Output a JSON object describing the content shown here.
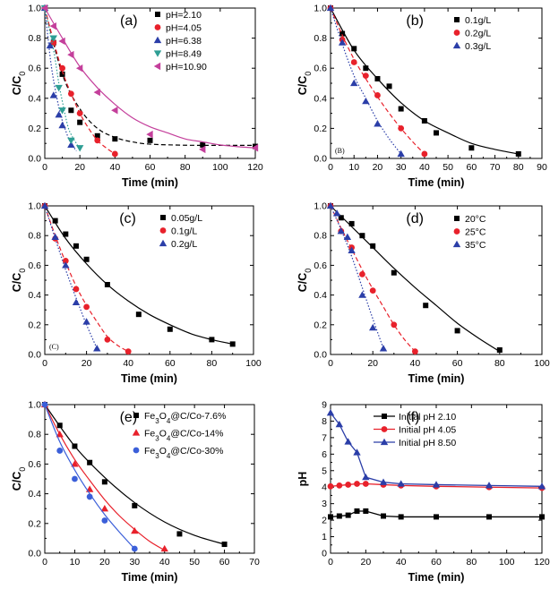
{
  "chart_data": [
    {
      "type": "scatter",
      "panel": "(a)",
      "inset": "",
      "xlabel": "Time (min)",
      "ylabel": "C/C",
      "ylabel_sub": "0",
      "xlim": [
        0,
        120
      ],
      "ylim": [
        0,
        1.0
      ],
      "xticks": [
        0,
        20,
        40,
        60,
        80,
        100,
        120
      ],
      "yticks": [
        0.0,
        0.2,
        0.4,
        0.6,
        0.8,
        1.0
      ],
      "legend_position": "top-right",
      "series": [
        {
          "name": "pH=2.10",
          "marker": "square",
          "color": "#000000",
          "line": "dashed",
          "x": [
            0,
            5,
            10,
            15,
            20,
            30,
            40,
            60,
            90,
            120
          ],
          "y": [
            1.0,
            0.77,
            0.56,
            0.32,
            0.24,
            0.15,
            0.13,
            0.12,
            0.09,
            0.08
          ],
          "fit_x": [
            0,
            10,
            20,
            30,
            40,
            50,
            60,
            80,
            100,
            120
          ],
          "fit_y": [
            1.0,
            0.56,
            0.33,
            0.2,
            0.14,
            0.11,
            0.095,
            0.088,
            0.087,
            0.087
          ]
        },
        {
          "name": "pH=4.05",
          "marker": "circle",
          "color": "#e8212b",
          "line": "dashed",
          "x": [
            0,
            5,
            10,
            15,
            20,
            30,
            40
          ],
          "y": [
            1.0,
            0.77,
            0.6,
            0.43,
            0.3,
            0.12,
            0.03
          ],
          "fit_x": [
            0,
            5,
            10,
            15,
            20,
            25,
            30,
            35,
            40
          ],
          "fit_y": [
            1.0,
            0.78,
            0.58,
            0.43,
            0.3,
            0.2,
            0.12,
            0.07,
            0.03
          ]
        },
        {
          "name": "pH=6.38",
          "marker": "triangle-up",
          "color": "#2b3ea8",
          "line": "dotted",
          "x": [
            0,
            3,
            5,
            8,
            10,
            15
          ],
          "y": [
            1.0,
            0.75,
            0.42,
            0.29,
            0.22,
            0.09
          ],
          "fit_x": [
            0,
            3,
            5,
            8,
            10,
            13,
            15,
            18
          ],
          "fit_y": [
            1.0,
            0.68,
            0.52,
            0.34,
            0.25,
            0.15,
            0.1,
            0.05
          ]
        },
        {
          "name": "pH=8.49",
          "marker": "triangle-down",
          "color": "#2e9e94",
          "line": "dotted",
          "x": [
            0,
            5,
            8,
            10,
            15,
            20
          ],
          "y": [
            1.0,
            0.8,
            0.47,
            0.32,
            0.12,
            0.07
          ],
          "fit_x": [
            0,
            5,
            8,
            10,
            13,
            15,
            18,
            20
          ],
          "fit_y": [
            1.0,
            0.72,
            0.5,
            0.38,
            0.22,
            0.16,
            0.1,
            0.06
          ]
        },
        {
          "name": "pH=10.90",
          "marker": "triangle-left",
          "color": "#c43f9b",
          "line": "solid",
          "x": [
            0,
            5,
            10,
            15,
            20,
            30,
            40,
            60,
            90,
            120
          ],
          "y": [
            1.0,
            0.88,
            0.78,
            0.69,
            0.6,
            0.44,
            0.32,
            0.16,
            0.06,
            0.07
          ],
          "fit_x": [
            0,
            10,
            20,
            30,
            40,
            50,
            60,
            70,
            80,
            90,
            100,
            110,
            120
          ],
          "fit_y": [
            1.0,
            0.8,
            0.61,
            0.47,
            0.36,
            0.27,
            0.21,
            0.17,
            0.13,
            0.11,
            0.09,
            0.078,
            0.07
          ]
        }
      ]
    },
    {
      "type": "scatter",
      "panel": "(b)",
      "inset": "(B)",
      "xlabel": "Time (min)",
      "ylabel": "C/C",
      "ylabel_sub": "0",
      "xlim": [
        0,
        90
      ],
      "ylim": [
        0,
        1.0
      ],
      "xticks": [
        0,
        10,
        20,
        30,
        40,
        50,
        60,
        70,
        80,
        90
      ],
      "yticks": [
        0.0,
        0.2,
        0.4,
        0.6,
        0.8,
        1.0
      ],
      "legend_position": "top-right",
      "series": [
        {
          "name": "0.1g/L",
          "marker": "square",
          "color": "#000000",
          "line": "solid",
          "x": [
            0,
            5,
            10,
            15,
            20,
            25,
            30,
            40,
            45,
            60,
            80
          ],
          "y": [
            1.0,
            0.83,
            0.73,
            0.6,
            0.53,
            0.48,
            0.33,
            0.25,
            0.17,
            0.07,
            0.03
          ],
          "fit_x": [
            0,
            10,
            20,
            30,
            40,
            50,
            60,
            70,
            80
          ],
          "fit_y": [
            1.0,
            0.72,
            0.53,
            0.37,
            0.25,
            0.17,
            0.1,
            0.06,
            0.03
          ]
        },
        {
          "name": "0.2g/L",
          "marker": "circle",
          "color": "#e8212b",
          "line": "dashed",
          "x": [
            0,
            5,
            10,
            15,
            20,
            30,
            40
          ],
          "y": [
            1.0,
            0.79,
            0.64,
            0.55,
            0.42,
            0.2,
            0.03
          ],
          "fit_x": [
            0,
            5,
            10,
            15,
            20,
            25,
            30,
            35,
            40
          ],
          "fit_y": [
            1.0,
            0.82,
            0.66,
            0.53,
            0.41,
            0.3,
            0.2,
            0.11,
            0.03
          ]
        },
        {
          "name": "0.3g/L",
          "marker": "triangle-up",
          "color": "#2b3ea8",
          "line": "dotted",
          "x": [
            0,
            5,
            10,
            15,
            20,
            30
          ],
          "y": [
            1.0,
            0.77,
            0.5,
            0.38,
            0.23,
            0.03
          ],
          "fit_x": [
            0,
            5,
            10,
            15,
            20,
            25,
            30
          ],
          "fit_y": [
            1.0,
            0.76,
            0.55,
            0.4,
            0.25,
            0.13,
            0.03
          ]
        }
      ]
    },
    {
      "type": "scatter",
      "panel": "(c)",
      "inset": "(C)",
      "xlabel": "Time (min)",
      "ylabel": "C/C",
      "ylabel_sub": "0",
      "xlim": [
        0,
        100
      ],
      "ylim": [
        0,
        1.0
      ],
      "xticks": [
        0,
        20,
        40,
        60,
        80,
        100
      ],
      "yticks": [
        0.0,
        0.2,
        0.4,
        0.6,
        0.8,
        1.0
      ],
      "legend_position": "top-right",
      "series": [
        {
          "name": "0.05g/L",
          "marker": "square",
          "color": "#000000",
          "line": "solid",
          "x": [
            0,
            5,
            10,
            15,
            20,
            30,
            45,
            60,
            80,
            90
          ],
          "y": [
            1.0,
            0.9,
            0.81,
            0.73,
            0.64,
            0.47,
            0.27,
            0.17,
            0.1,
            0.07
          ],
          "fit_x": [
            0,
            10,
            20,
            30,
            40,
            50,
            60,
            70,
            80,
            90
          ],
          "fit_y": [
            1.0,
            0.78,
            0.61,
            0.47,
            0.36,
            0.27,
            0.2,
            0.14,
            0.1,
            0.07
          ]
        },
        {
          "name": "0.1g/L",
          "marker": "circle",
          "color": "#e8212b",
          "line": "dashed",
          "x": [
            0,
            5,
            10,
            15,
            20,
            30,
            40
          ],
          "y": [
            1.0,
            0.78,
            0.63,
            0.44,
            0.32,
            0.1,
            0.02
          ],
          "fit_x": [
            0,
            5,
            10,
            15,
            20,
            25,
            30,
            35,
            40
          ],
          "fit_y": [
            1.0,
            0.8,
            0.62,
            0.46,
            0.33,
            0.22,
            0.12,
            0.06,
            0.02
          ]
        },
        {
          "name": "0.2g/L",
          "marker": "triangle-up",
          "color": "#2b3ea8",
          "line": "dotted",
          "x": [
            0,
            5,
            10,
            15,
            20,
            25
          ],
          "y": [
            1.0,
            0.79,
            0.6,
            0.35,
            0.22,
            0.04
          ],
          "fit_x": [
            0,
            5,
            10,
            15,
            20,
            25
          ],
          "fit_y": [
            1.0,
            0.78,
            0.57,
            0.38,
            0.2,
            0.04
          ]
        }
      ]
    },
    {
      "type": "scatter",
      "panel": "(d)",
      "inset": "",
      "xlabel": "Time (min)",
      "ylabel": "C/C",
      "ylabel_sub": "0",
      "xlim": [
        0,
        100
      ],
      "ylim": [
        0,
        1.0
      ],
      "xticks": [
        0,
        20,
        40,
        60,
        80,
        100
      ],
      "yticks": [
        0.0,
        0.2,
        0.4,
        0.6,
        0.8,
        1.0
      ],
      "legend_position": "top-right",
      "series": [
        {
          "name": "20°C",
          "marker": "square",
          "color": "#000000",
          "line": "solid",
          "x": [
            0,
            5,
            10,
            15,
            20,
            30,
            45,
            60,
            80
          ],
          "y": [
            1.0,
            0.92,
            0.88,
            0.8,
            0.73,
            0.55,
            0.33,
            0.16,
            0.03
          ],
          "fit_x": [
            0,
            10,
            20,
            30,
            40,
            50,
            60,
            70,
            80
          ],
          "fit_y": [
            1.0,
            0.86,
            0.72,
            0.58,
            0.45,
            0.33,
            0.21,
            0.11,
            0.02
          ]
        },
        {
          "name": "25°C",
          "marker": "circle",
          "color": "#e8212b",
          "line": "dashed",
          "x": [
            0,
            5,
            10,
            15,
            20,
            30,
            40
          ],
          "y": [
            1.0,
            0.83,
            0.72,
            0.54,
            0.43,
            0.2,
            0.02
          ],
          "fit_x": [
            0,
            5,
            10,
            15,
            20,
            25,
            30,
            35,
            40
          ],
          "fit_y": [
            1.0,
            0.85,
            0.71,
            0.57,
            0.44,
            0.32,
            0.2,
            0.1,
            0.02
          ]
        },
        {
          "name": "35°C",
          "marker": "triangle-up",
          "color": "#2b3ea8",
          "line": "dotted",
          "x": [
            0,
            3,
            5,
            8,
            10,
            15,
            20,
            25
          ],
          "y": [
            1.0,
            0.95,
            0.83,
            0.79,
            0.7,
            0.4,
            0.18,
            0.04
          ],
          "fit_x": [
            0,
            5,
            10,
            15,
            20,
            25
          ],
          "fit_y": [
            1.0,
            0.84,
            0.66,
            0.45,
            0.24,
            0.04
          ]
        }
      ]
    },
    {
      "type": "scatter",
      "panel": "(e)",
      "inset": "",
      "xlabel": "Time (min)",
      "ylabel": "C/C",
      "ylabel_sub": "0",
      "xlim": [
        0,
        70
      ],
      "ylim": [
        0,
        1.0
      ],
      "xticks": [
        0,
        10,
        20,
        30,
        40,
        50,
        60,
        70
      ],
      "yticks": [
        0.0,
        0.2,
        0.4,
        0.6,
        0.8,
        1.0
      ],
      "legend_position": "top-right",
      "series": [
        {
          "name": "Fe3O4@C/Co-7.6%",
          "name_parts": [
            "Fe",
            "3",
            "O",
            "4",
            "@C/Co-7.6%"
          ],
          "marker": "square",
          "color": "#000000",
          "line": "solid",
          "x": [
            0,
            5,
            10,
            15,
            20,
            30,
            45,
            60
          ],
          "y": [
            1.0,
            0.86,
            0.72,
            0.61,
            0.48,
            0.32,
            0.13,
            0.06
          ],
          "fit_x": [
            0,
            10,
            20,
            30,
            40,
            50,
            60
          ],
          "fit_y": [
            1.0,
            0.72,
            0.51,
            0.34,
            0.21,
            0.12,
            0.06
          ]
        },
        {
          "name": "Fe3O4@C/Co-14%",
          "name_parts": [
            "Fe",
            "3",
            "O",
            "4",
            "@C/Co-14%"
          ],
          "marker": "triangle-up",
          "color": "#e8212b",
          "line": "solid",
          "x": [
            0,
            5,
            10,
            15,
            20,
            30,
            40
          ],
          "y": [
            1.0,
            0.8,
            0.6,
            0.43,
            0.3,
            0.15,
            0.03
          ],
          "fit_x": [
            0,
            5,
            10,
            15,
            20,
            25,
            30,
            35,
            40
          ],
          "fit_y": [
            1.0,
            0.8,
            0.63,
            0.49,
            0.36,
            0.25,
            0.16,
            0.08,
            0.02
          ]
        },
        {
          "name": "Fe3O4@C/Co-30%",
          "name_parts": [
            "Fe",
            "3",
            "O",
            "4",
            "@C/Co-30%"
          ],
          "marker": "circle",
          "color": "#3b5fd9",
          "line": "solid",
          "x": [
            0,
            5,
            10,
            15,
            20,
            30
          ],
          "y": [
            1.0,
            0.69,
            0.5,
            0.38,
            0.22,
            0.03
          ],
          "fit_x": [
            0,
            5,
            10,
            15,
            20,
            25,
            30
          ],
          "fit_y": [
            1.0,
            0.75,
            0.56,
            0.4,
            0.26,
            0.14,
            0.03
          ]
        }
      ]
    },
    {
      "type": "line",
      "panel": "(f)",
      "inset": "",
      "xlabel": "Time (min)",
      "ylabel": "pH",
      "ylabel_sub": "",
      "xlim": [
        0,
        120
      ],
      "ylim": [
        0,
        9
      ],
      "xticks": [
        0,
        20,
        40,
        60,
        80,
        100,
        120
      ],
      "yticks": [
        0,
        1,
        2,
        3,
        4,
        5,
        6,
        7,
        8,
        9
      ],
      "legend_position": "top-right",
      "series": [
        {
          "name": "Initial pH 2.10",
          "marker": "square",
          "color": "#000000",
          "line": "solid",
          "x": [
            0,
            5,
            10,
            15,
            20,
            30,
            40,
            60,
            90,
            120
          ],
          "y": [
            2.2,
            2.25,
            2.3,
            2.55,
            2.55,
            2.25,
            2.2,
            2.2,
            2.2,
            2.2
          ]
        },
        {
          "name": "Initial pH 4.05",
          "marker": "circle",
          "color": "#e8212b",
          "line": "solid",
          "x": [
            0,
            5,
            10,
            15,
            20,
            30,
            40,
            60,
            90,
            120
          ],
          "y": [
            4.05,
            4.1,
            4.15,
            4.2,
            4.2,
            4.15,
            4.1,
            4.05,
            4.0,
            3.95
          ]
        },
        {
          "name": "Initial pH 8.50",
          "marker": "triangle-up",
          "color": "#2b3ea8",
          "line": "solid",
          "x": [
            0,
            5,
            10,
            15,
            20,
            30,
            40,
            60,
            90,
            120
          ],
          "y": [
            8.5,
            7.8,
            6.75,
            6.1,
            4.6,
            4.3,
            4.2,
            4.15,
            4.1,
            4.05
          ]
        }
      ]
    }
  ]
}
